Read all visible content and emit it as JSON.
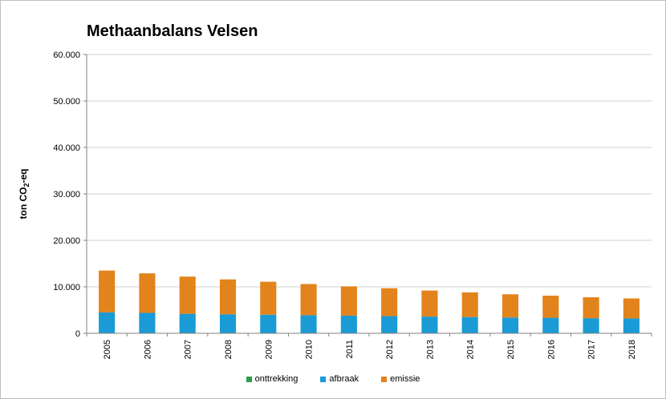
{
  "chart_data": {
    "type": "bar",
    "stacked": true,
    "title": "Methaanbalans Velsen",
    "ylabel_main": "ton CO",
    "ylabel_sub": "2",
    "ylabel_suffix": "-eq",
    "xlabel": "",
    "ylim": [
      0,
      60000
    ],
    "yticks": [
      0,
      10000,
      20000,
      30000,
      40000,
      50000,
      60000
    ],
    "ytick_labels": [
      "0",
      "10.000",
      "20.000",
      "30.000",
      "40.000",
      "50.000",
      "60.000"
    ],
    "grid": true,
    "legend_position": "bottom",
    "categories": [
      "2005",
      "2006",
      "2007",
      "2008",
      "2009",
      "2010",
      "2011",
      "2012",
      "2013",
      "2014",
      "2015",
      "2016",
      "2017",
      "2018"
    ],
    "series": [
      {
        "name": "onttrekking",
        "color": "#2e9e49",
        "values": [
          0,
          0,
          0,
          0,
          0,
          0,
          0,
          0,
          0,
          0,
          0,
          0,
          0,
          0
        ]
      },
      {
        "name": "afbraak",
        "color": "#1a9bd6",
        "values": [
          4500,
          4400,
          4200,
          4100,
          4000,
          3900,
          3800,
          3700,
          3600,
          3500,
          3400,
          3350,
          3250,
          3200
        ]
      },
      {
        "name": "emissie",
        "color": "#e3831b",
        "values": [
          9000,
          8500,
          8000,
          7500,
          7100,
          6700,
          6300,
          6000,
          5600,
          5300,
          5000,
          4750,
          4500,
          4300
        ]
      }
    ]
  }
}
